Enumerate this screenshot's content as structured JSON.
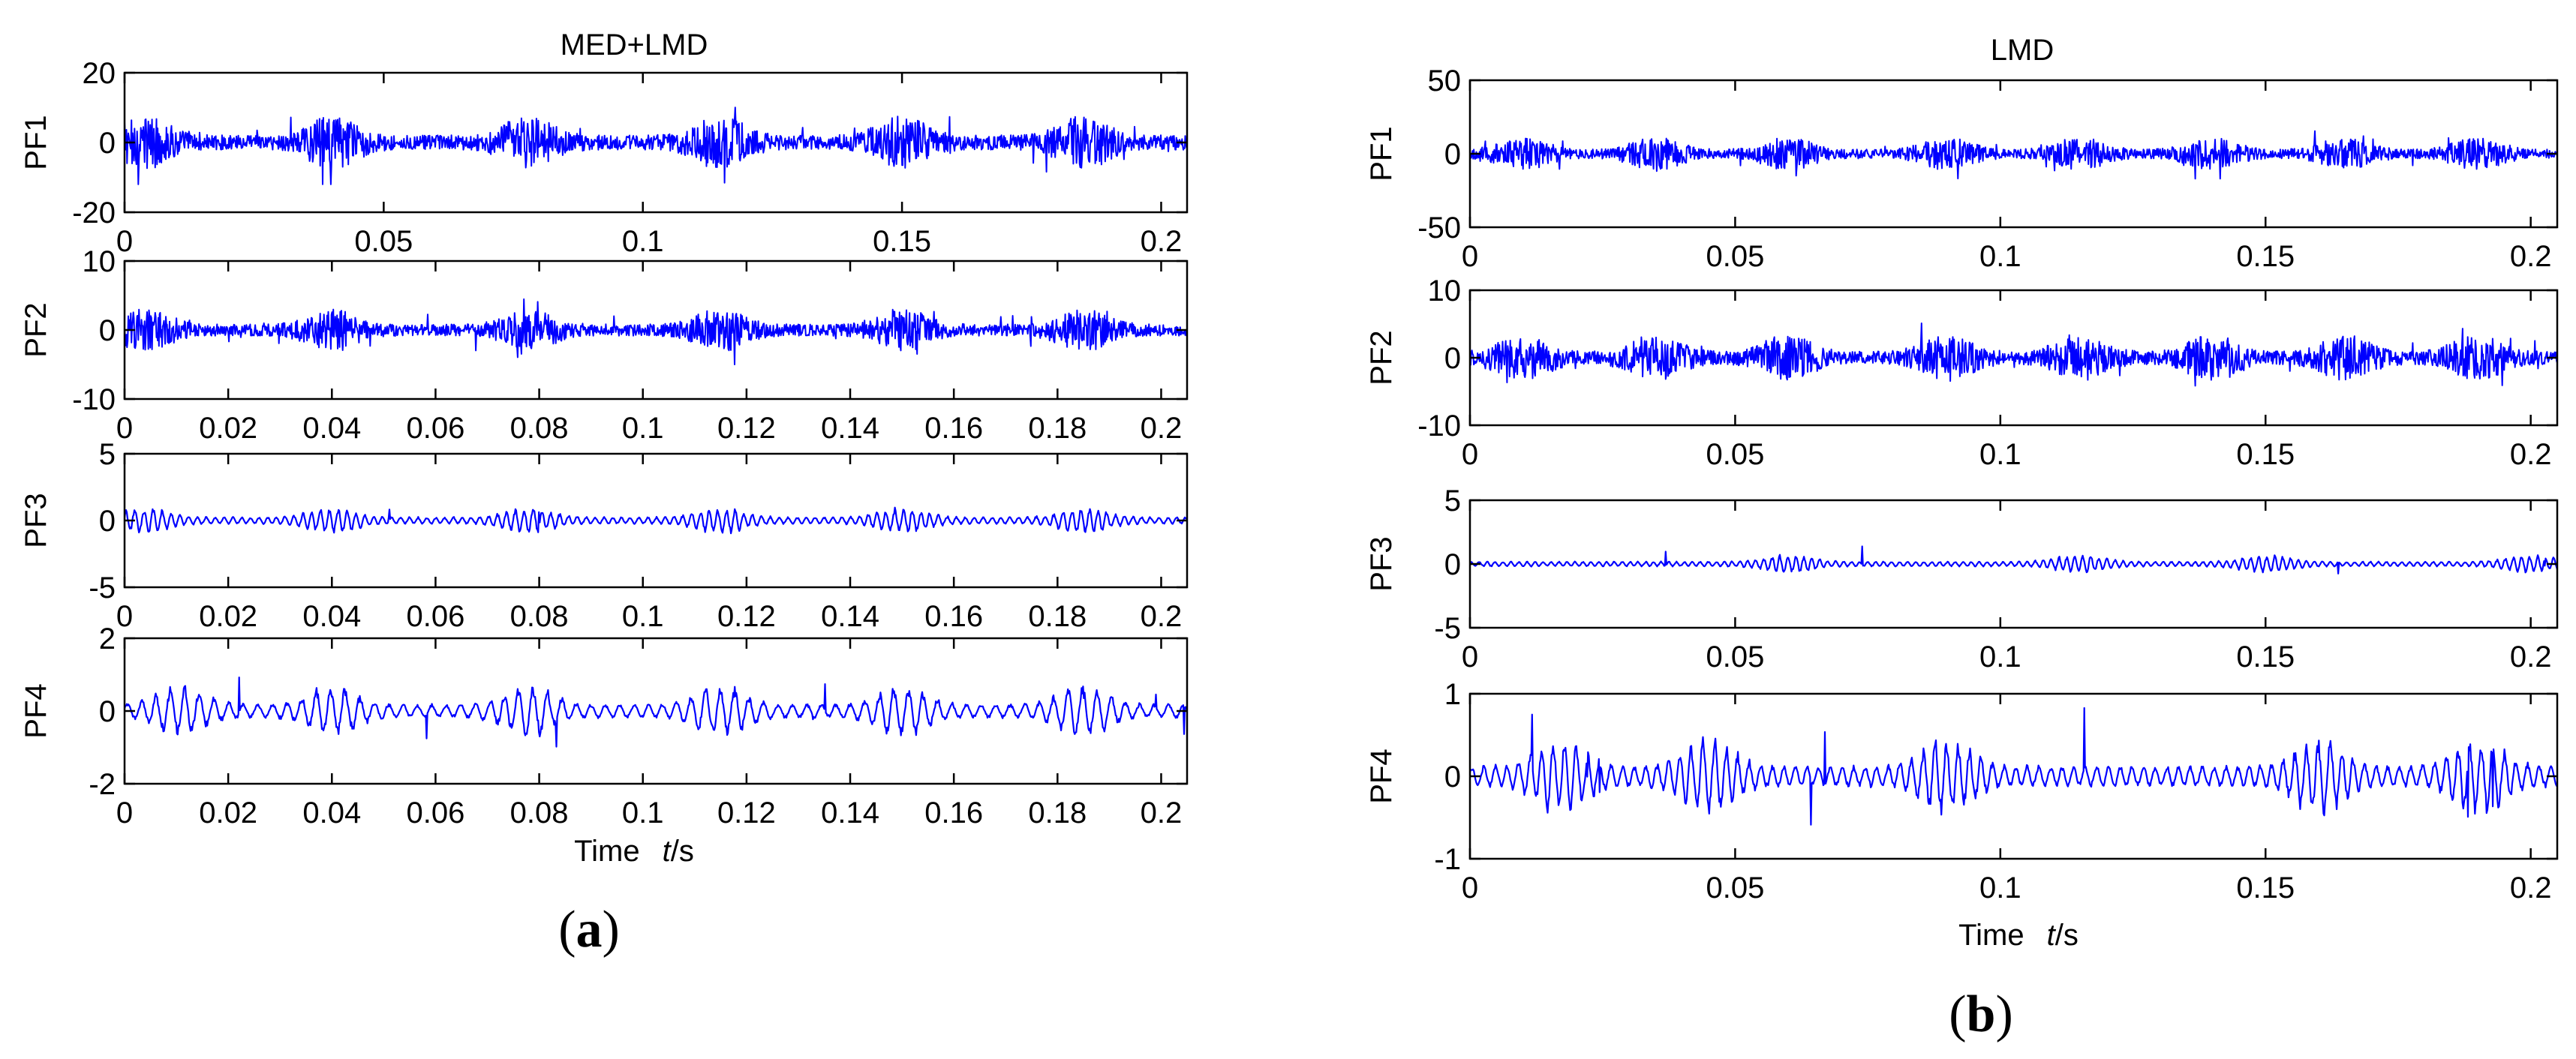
{
  "figure": {
    "panel_a_label": {
      "open": "(",
      "letter": "a",
      "close": ")"
    },
    "panel_b_label": {
      "open": "(",
      "letter": "b",
      "close": ")"
    },
    "line_color": "#0000ff"
  },
  "chart_data": [
    {
      "type": "line",
      "title": "MED+LMD",
      "xlabel": "Time",
      "xlabel_italic": "t",
      "xlabel_unit": "/s",
      "xlim": [
        0,
        0.205
      ],
      "subplots": [
        {
          "ylabel": "PF1",
          "ylim": [
            -20,
            20
          ],
          "yticks": [
            -20,
            0,
            20
          ],
          "xticks": [
            0,
            0.05,
            0.1,
            0.15,
            0.2
          ],
          "xticklabels": [
            "0",
            "0.05",
            "0.1",
            "0.15",
            "0.2"
          ],
          "signal": {
            "kind": "noise",
            "amplitude": 5,
            "peak": 12,
            "bursts": [
              0.004,
              0.04,
              0.078,
              0.115,
              0.15,
              0.185
            ]
          }
        },
        {
          "ylabel": "PF2",
          "ylim": [
            -10,
            10
          ],
          "yticks": [
            -10,
            0,
            10
          ],
          "xticks": [
            0,
            0.02,
            0.04,
            0.06,
            0.08,
            0.1,
            0.12,
            0.14,
            0.16,
            0.18,
            0.2
          ],
          "xticklabels": [
            "0",
            "0.02",
            "0.04",
            "0.06",
            "0.08",
            "0.1",
            "0.12",
            "0.14",
            "0.16",
            "0.18",
            "0.2"
          ],
          "signal": {
            "kind": "noise",
            "amplitude": 2,
            "peak": 5,
            "bursts": [
              0.004,
              0.04,
              0.078,
              0.115,
              0.15,
              0.185
            ]
          }
        },
        {
          "ylabel": "PF3",
          "ylim": [
            -5,
            5
          ],
          "yticks": [
            -5,
            0,
            5
          ],
          "xticks": [
            0,
            0.02,
            0.04,
            0.06,
            0.08,
            0.1,
            0.12,
            0.14,
            0.16,
            0.18,
            0.2
          ],
          "xticklabels": [
            "0",
            "0.02",
            "0.04",
            "0.06",
            "0.08",
            "0.1",
            "0.12",
            "0.14",
            "0.16",
            "0.18",
            "0.2"
          ],
          "signal": {
            "kind": "oscillation",
            "amplitude": 0.6,
            "peak": 2,
            "period": 0.0017,
            "bursts": [
              0.004,
              0.04,
              0.078,
              0.115,
              0.15,
              0.185
            ]
          }
        },
        {
          "ylabel": "PF4",
          "ylim": [
            -2,
            2
          ],
          "yticks": [
            -2,
            0,
            2
          ],
          "xticks": [
            0,
            0.02,
            0.04,
            0.06,
            0.08,
            0.1,
            0.12,
            0.14,
            0.16,
            0.18,
            0.2
          ],
          "xticklabels": [
            "0",
            "0.02",
            "0.04",
            "0.06",
            "0.08",
            "0.1",
            "0.12",
            "0.14",
            "0.16",
            "0.18",
            "0.2"
          ],
          "signal": {
            "kind": "oscillation",
            "amplitude": 0.45,
            "peak": 1.2,
            "period": 0.0028,
            "bursts": [
              0.011,
              0.04,
              0.078,
              0.115,
              0.15,
              0.185
            ]
          }
        }
      ]
    },
    {
      "type": "line",
      "title": "LMD",
      "xlabel": "Time",
      "xlabel_italic": "t",
      "xlabel_unit": "/s",
      "xlim": [
        0,
        0.205
      ],
      "subplots": [
        {
          "ylabel": "PF1",
          "ylim": [
            -50,
            50
          ],
          "yticks": [
            -50,
            0,
            50
          ],
          "xticks": [
            0,
            0.05,
            0.1,
            0.15,
            0.2
          ],
          "xticklabels": [
            "0",
            "0.05",
            "0.1",
            "0.15",
            "0.2"
          ],
          "signal": {
            "kind": "noise",
            "amplitude": 7,
            "peak": 17,
            "bursts": [
              0.01,
              0.035,
              0.06,
              0.09,
              0.115,
              0.14,
              0.165,
              0.19
            ]
          }
        },
        {
          "ylabel": "PF2",
          "ylim": [
            -10,
            10
          ],
          "yticks": [
            -10,
            0,
            10
          ],
          "xticks": [
            0,
            0.05,
            0.1,
            0.15,
            0.2
          ],
          "xticklabels": [
            "0",
            "0.05",
            "0.1",
            "0.15",
            "0.2"
          ],
          "signal": {
            "kind": "noise",
            "amplitude": 2.2,
            "peak": 5.5,
            "bursts": [
              0.01,
              0.035,
              0.06,
              0.09,
              0.115,
              0.14,
              0.165,
              0.19
            ]
          }
        },
        {
          "ylabel": "PF3",
          "ylim": [
            -5,
            5
          ],
          "yticks": [
            -5,
            0,
            5
          ],
          "xticks": [
            0,
            0.05,
            0.1,
            0.15,
            0.2
          ],
          "xticklabels": [
            "0",
            "0.05",
            "0.1",
            "0.15",
            "0.2"
          ],
          "signal": {
            "kind": "oscillation",
            "amplitude": 0.45,
            "peak": 1.8,
            "period": 0.0015,
            "bursts": [
              0.06,
              0.115,
              0.15,
              0.2
            ]
          }
        },
        {
          "ylabel": "PF4",
          "ylim": [
            -1,
            1
          ],
          "yticks": [
            -1,
            0,
            1
          ],
          "xticks": [
            0,
            0.05,
            0.1,
            0.15,
            0.2
          ],
          "xticklabels": [
            "0",
            "0.05",
            "0.1",
            "0.15",
            "0.2"
          ],
          "signal": {
            "kind": "oscillation",
            "amplitude": 0.3,
            "peak": 0.85,
            "period": 0.0022,
            "bursts": [
              0.017,
              0.045,
              0.09,
              0.16,
              0.19
            ]
          }
        }
      ]
    }
  ]
}
